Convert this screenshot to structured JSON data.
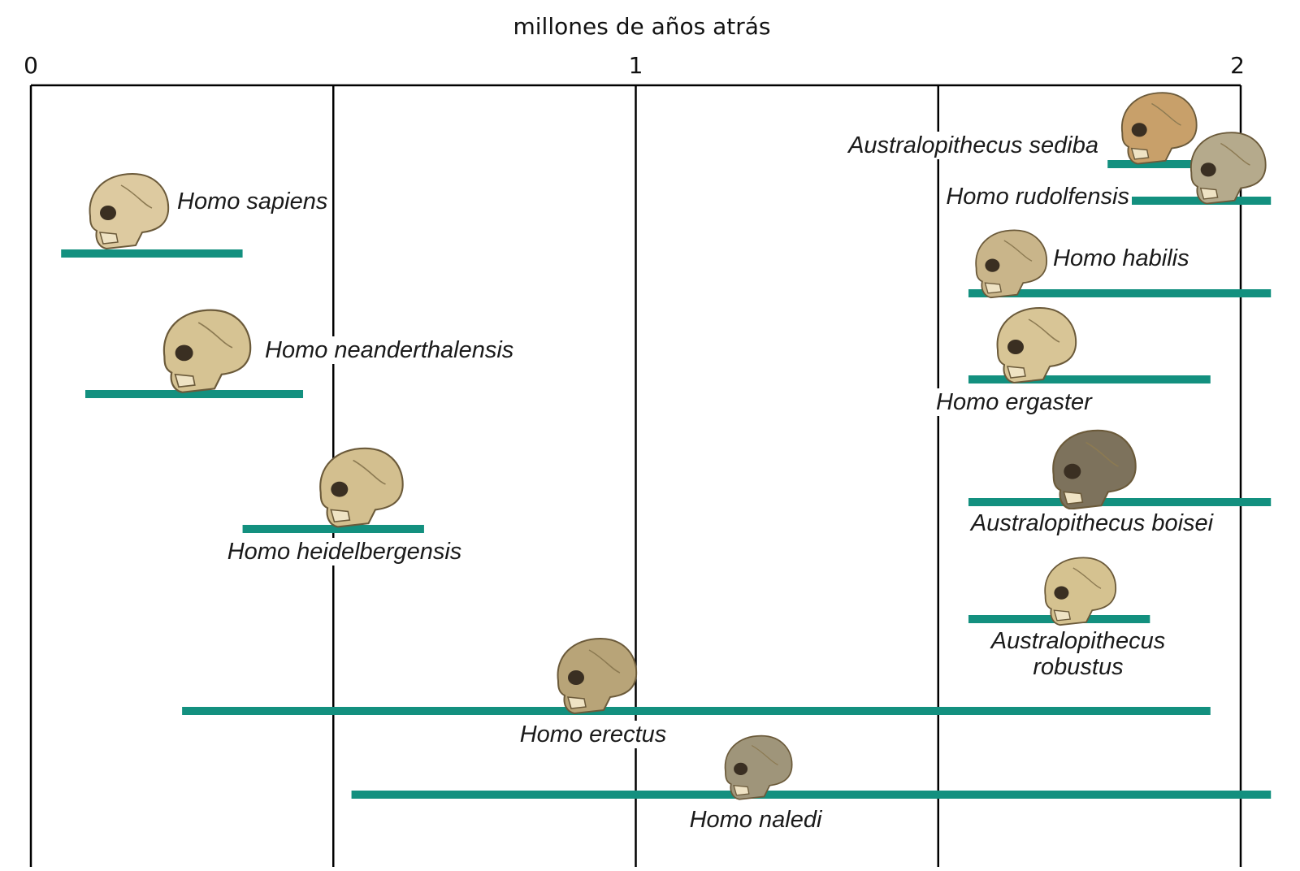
{
  "chart_data": {
    "type": "bar",
    "subtype": "horizontal range (timeline)",
    "title": "millones de años atrás",
    "xlabel": "millones de años atrás",
    "ylabel": "",
    "xlim": [
      0,
      2
    ],
    "x_ticks": [
      0,
      1,
      2
    ],
    "x_tick_labels": [
      "0",
      "1",
      "2"
    ],
    "x_gridlines": [
      0.5,
      1,
      1.5
    ],
    "grid": true,
    "axis_position": "top",
    "bar_color": "#13907f",
    "species": [
      {
        "name": "Australopithecus sediba",
        "start": 1.95,
        "end": 1.78,
        "skull": "ape-like brown skull"
      },
      {
        "name": "Homo rudolfensis",
        "start": 2.05,
        "end": 1.78,
        "skull": "grey reconstructed skull"
      },
      {
        "name": "Homo sapiens",
        "start": 0.05,
        "end": 0.35,
        "skull": "modern human skull"
      },
      {
        "name": "Homo habilis",
        "start": 2.05,
        "end": 1.55,
        "skull": "fragmentary skull"
      },
      {
        "name": "Homo neanderthalensis",
        "start": 0.09,
        "end": 0.45,
        "skull": "neanderthal skull"
      },
      {
        "name": "Homo ergaster",
        "start": 1.95,
        "end": 1.55,
        "skull": "ergaster skull"
      },
      {
        "name": "Australopithecus boisei",
        "start": 2.05,
        "end": 1.55,
        "skull": "dark reconstructed skull"
      },
      {
        "name": "Homo heidelbergensis",
        "start": 0.35,
        "end": 0.65,
        "skull": "heidelbergensis skull"
      },
      {
        "name": "Australopithecus robustus",
        "start": 1.85,
        "end": 1.55,
        "skull": "robust jaw skull"
      },
      {
        "name": "Homo erectus",
        "start": 0.25,
        "end": 1.95,
        "skull": "erectus skull"
      },
      {
        "name": "Homo naledi",
        "start": 0.53,
        "end": 2.05,
        "skull": "naledi skull"
      }
    ]
  }
}
